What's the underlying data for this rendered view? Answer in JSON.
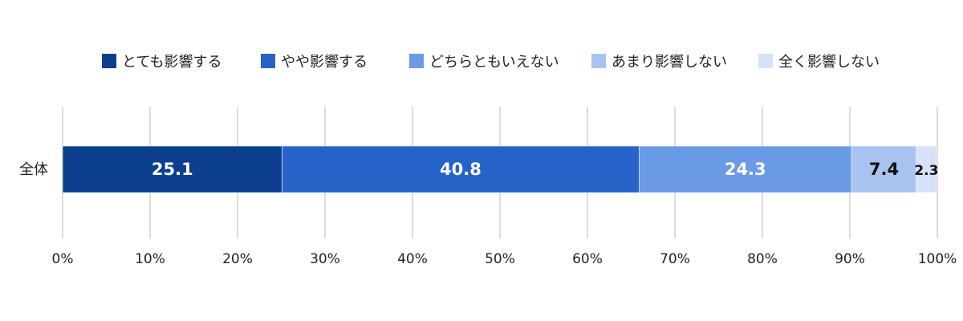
{
  "chart_data": {
    "type": "bar",
    "orientation": "horizontal",
    "stacked": true,
    "categories": [
      "全体"
    ],
    "series": [
      {
        "name": "とても影響する",
        "values": [
          25.1
        ],
        "color": "#0d3f8f"
      },
      {
        "name": "やや影響する",
        "values": [
          40.8
        ],
        "color": "#2563c9"
      },
      {
        "name": "どちらともいえない",
        "values": [
          24.3
        ],
        "color": "#6b9ae6"
      },
      {
        "name": "あまり影響しない",
        "values": [
          7.4
        ],
        "color": "#a8c3ef"
      },
      {
        "name": "全く影響しない",
        "values": [
          2.3
        ],
        "color": "#d5e2f7"
      }
    ],
    "data_labels": [
      "25.1",
      "40.8",
      "24.3",
      "7.4",
      "2.3"
    ],
    "x_ticks": [
      "0%",
      "10%",
      "20%",
      "30%",
      "40%",
      "50%",
      "60%",
      "70%",
      "80%",
      "90%",
      "100%"
    ],
    "xlim": [
      0,
      100
    ],
    "title": "",
    "xlabel": "",
    "ylabel": "",
    "grid": "vertical",
    "legend": "top"
  }
}
